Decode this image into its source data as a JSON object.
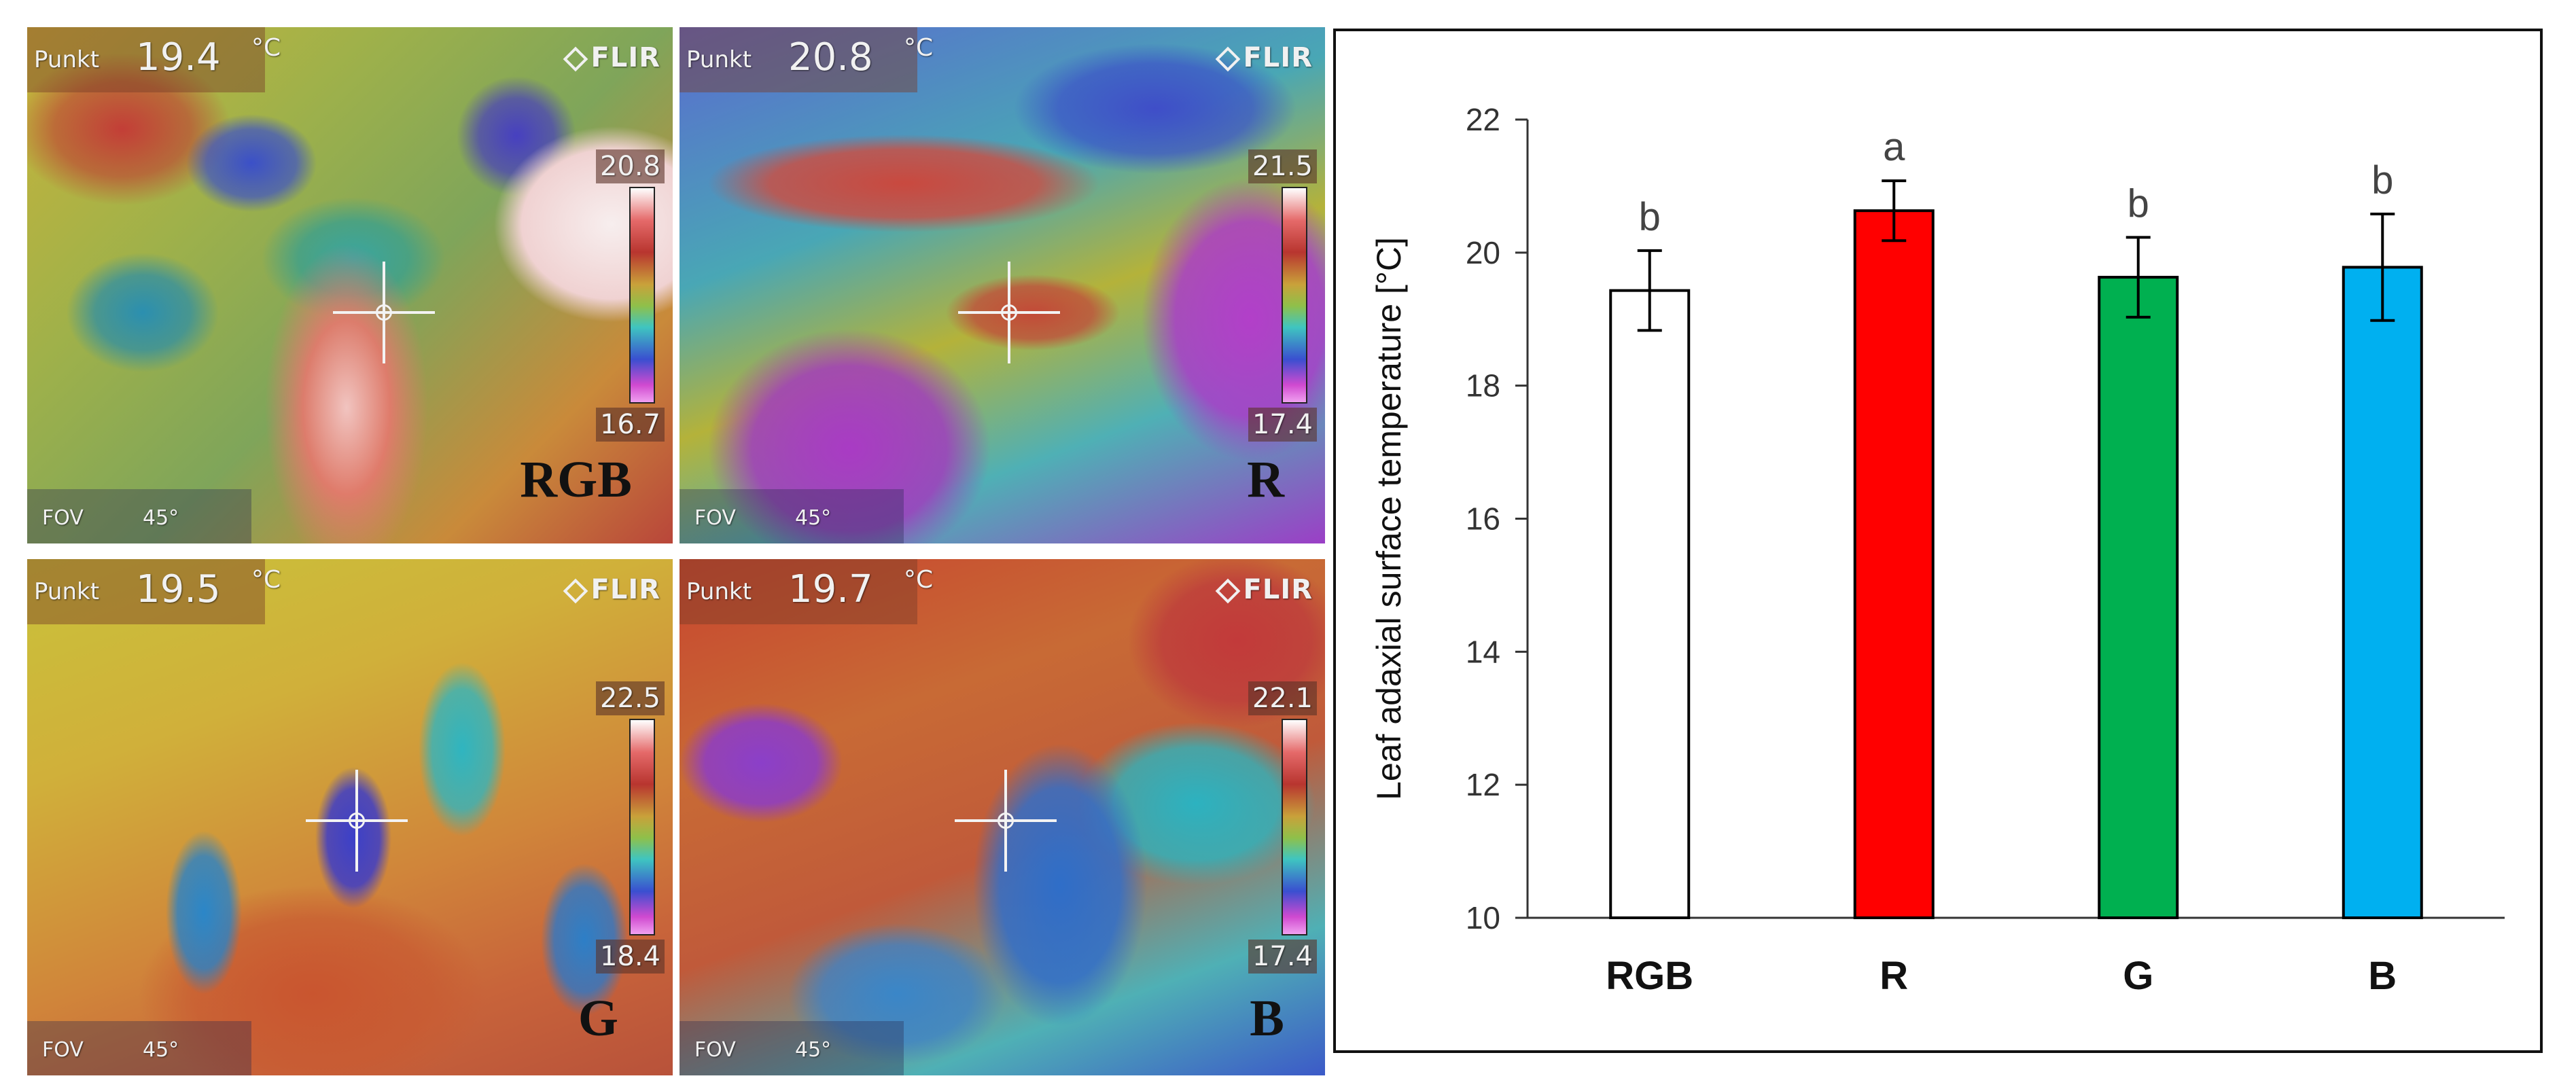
{
  "thermal_panels": [
    {
      "label": "RGB",
      "punkt_label": "Punkt",
      "reading": "19.4",
      "unit": "°C",
      "scale_max": "20.8",
      "scale_min": "16.7",
      "fov_label": "FOV",
      "fov_value": "45°",
      "brand": "FLIR"
    },
    {
      "label": "R",
      "punkt_label": "Punkt",
      "reading": "20.8",
      "unit": "°C",
      "scale_max": "21.5",
      "scale_min": "17.4",
      "fov_label": "FOV",
      "fov_value": "45°",
      "brand": "FLIR"
    },
    {
      "label": "G",
      "punkt_label": "Punkt",
      "reading": "19.5",
      "unit": "°C",
      "scale_max": "22.5",
      "scale_min": "18.4",
      "fov_label": "FOV",
      "fov_value": "45°",
      "brand": "FLIR"
    },
    {
      "label": "B",
      "punkt_label": "Punkt",
      "reading": "19.7",
      "unit": "°C",
      "scale_max": "22.1",
      "scale_min": "17.4",
      "fov_label": "FOV",
      "fov_value": "45°",
      "brand": "FLIR"
    }
  ],
  "chart_data": {
    "type": "bar",
    "categories": [
      "RGB",
      "R",
      "G",
      "B"
    ],
    "values": [
      19.43,
      20.63,
      19.63,
      19.78
    ],
    "errors": [
      0.6,
      0.45,
      0.6,
      0.8
    ],
    "significance_letters": [
      "b",
      "a",
      "b",
      "b"
    ],
    "bar_colors": [
      "#ffffff",
      "#ff0000",
      "#00b050",
      "#00b0f0"
    ],
    "ylabel": "Leaf adaxial surface temperature [°C]",
    "xlabel": "",
    "title": "",
    "ylim": [
      10,
      22
    ],
    "yticks": [
      "10",
      "12",
      "14",
      "16",
      "18",
      "20",
      "22"
    ],
    "grid": false
  }
}
